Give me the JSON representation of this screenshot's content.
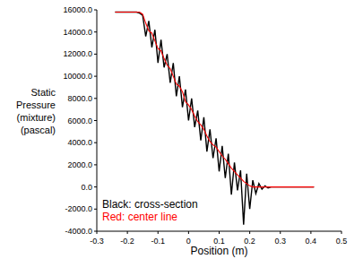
{
  "chart_data": {
    "type": "line",
    "x_label": "Position (m)",
    "y_label": [
      "Static",
      "Pressure",
      "(mixture)",
      "(pascal)"
    ],
    "x": [
      -0.24,
      -0.23,
      -0.22,
      -0.21,
      -0.2,
      -0.19,
      -0.18,
      -0.17,
      -0.16,
      -0.15,
      -0.14,
      -0.13,
      -0.12,
      -0.11,
      -0.1,
      -0.09,
      -0.08,
      -0.07,
      -0.06,
      -0.05,
      -0.04,
      -0.03,
      -0.02,
      -0.01,
      0,
      0.01,
      0.02,
      0.03,
      0.04,
      0.05,
      0.06,
      0.07,
      0.08,
      0.09,
      0.1,
      0.11,
      0.12,
      0.13,
      0.14,
      0.15,
      0.16,
      0.17,
      0.18,
      0.19,
      0.2,
      0.21,
      0.22,
      0.23,
      0.24,
      0.25,
      0.26,
      0.27,
      0.28,
      0.29,
      0.3,
      0.31,
      0.32,
      0.33,
      0.34,
      0.35,
      0.36,
      0.37,
      0.38,
      0.39,
      0.4,
      0.41
    ],
    "series": [
      {
        "name": "Black: cross-section",
        "color": "#000000",
        "values": [
          15800,
          15800,
          15800,
          15800,
          15800,
          15800,
          15800,
          15800,
          15700,
          15500,
          13600,
          15000,
          12600,
          14200,
          11200,
          13300,
          10800,
          12000,
          9400,
          11200,
          8200,
          10000,
          7200,
          8800,
          6000,
          8000,
          5400,
          6900,
          4200,
          6300,
          3200,
          5200,
          2600,
          4400,
          1400,
          3700,
          800,
          3000,
          -700,
          2200,
          -300,
          1500,
          -3400,
          1200,
          -2000,
          600,
          -600,
          300,
          -200,
          100,
          -100,
          0,
          0,
          0,
          0,
          0,
          0,
          0,
          0,
          0,
          0,
          0,
          0,
          0,
          0,
          0
        ]
      },
      {
        "name": "Red: center line",
        "color": "#ff0000",
        "values": [
          15800,
          15800,
          15800,
          15800,
          15800,
          15800,
          15800,
          15800,
          15800,
          15600,
          14800,
          14100,
          13900,
          13200,
          12500,
          12300,
          11600,
          11000,
          10700,
          10000,
          9300,
          9100,
          8600,
          7700,
          7400,
          7000,
          6400,
          5900,
          5600,
          5200,
          4600,
          4100,
          3800,
          3600,
          3200,
          2800,
          2500,
          2100,
          1700,
          1400,
          1100,
          800,
          500,
          300,
          100,
          0,
          0,
          0,
          0,
          0,
          0,
          0,
          0,
          0,
          0,
          0,
          0,
          0,
          0,
          0,
          0,
          0,
          0,
          0,
          0,
          0
        ]
      }
    ],
    "xlim": [
      -0.3,
      0.5
    ],
    "xticks": [
      -0.3,
      -0.2,
      -0.1,
      0,
      0.1,
      0.2,
      0.3,
      0.4,
      0.5
    ],
    "ylim": [
      -4000,
      16000
    ],
    "yticks": [
      {
        "value": -4000,
        "label": "-4000.0"
      },
      {
        "value": -2000,
        "label": "-2000.0"
      },
      {
        "value": 0,
        "label": "0.0"
      },
      {
        "value": 2000,
        "label": "2000.0"
      },
      {
        "value": 4000,
        "label": "4000.0"
      },
      {
        "value": 6000,
        "label": "6000.0"
      },
      {
        "value": 8000,
        "label": "8000.0"
      },
      {
        "value": 10000,
        "label": "10000.0"
      },
      {
        "value": 12000,
        "label": "12000.0"
      },
      {
        "value": 14000,
        "label": "14000.0"
      },
      {
        "value": 16000,
        "label": "16000.0"
      }
    ],
    "grid": false,
    "legend": "lower left"
  }
}
